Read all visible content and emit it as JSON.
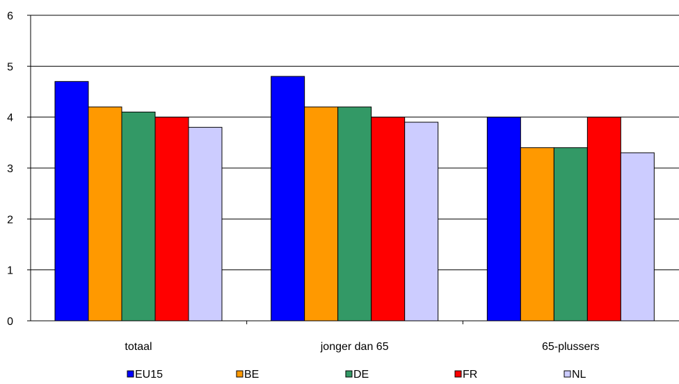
{
  "chart_data": {
    "type": "bar",
    "categories": [
      "totaal",
      "jonger dan 65",
      "65-plussers"
    ],
    "series": [
      {
        "name": "EU15",
        "values": [
          4.7,
          4.8,
          4.0
        ],
        "color": "#0000FF"
      },
      {
        "name": "BE",
        "values": [
          4.2,
          4.2,
          3.4
        ],
        "color": "#FF9900"
      },
      {
        "name": "DE",
        "values": [
          4.1,
          4.2,
          3.4
        ],
        "color": "#339966"
      },
      {
        "name": "FR",
        "values": [
          4.0,
          4.0,
          4.0
        ],
        "color": "#FF0000"
      },
      {
        "name": "NL",
        "values": [
          3.8,
          3.9,
          3.3
        ],
        "color": "#CCCCFF"
      }
    ],
    "title": "",
    "xlabel": "",
    "ylabel": "",
    "ylim": [
      0,
      6
    ],
    "yticks": [
      0,
      1,
      2,
      3,
      4,
      5,
      6
    ],
    "grid": true,
    "legend_position": "bottom"
  }
}
